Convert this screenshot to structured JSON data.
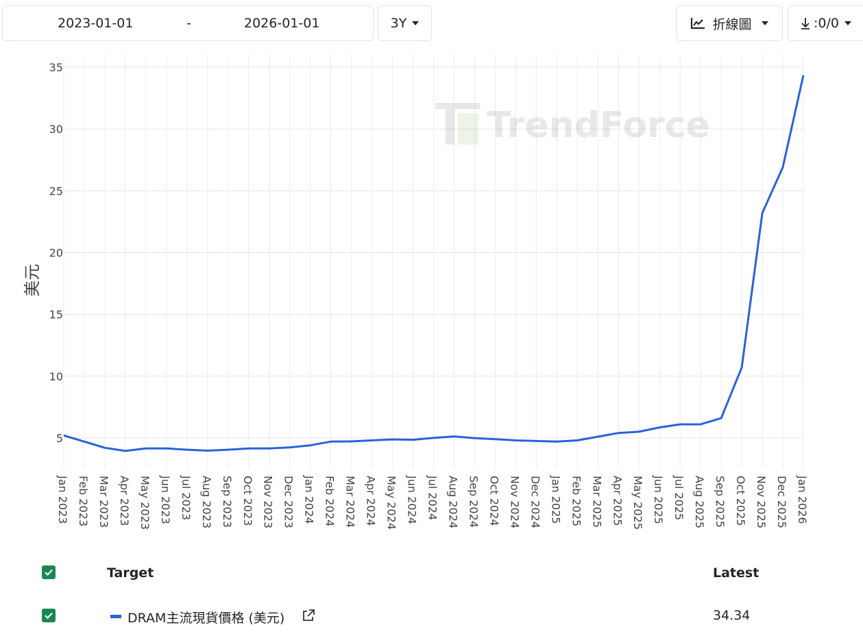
{
  "controls": {
    "start_date": "2023-01-01",
    "separator": "-",
    "end_date": "2026-01-01",
    "range": "3Y",
    "chart_type": "折線圖",
    "download": ":0/0"
  },
  "watermark": "TrendForce",
  "table": {
    "header_target": "Target",
    "header_latest": "Latest",
    "rows": [
      {
        "name": "DRAM主流現貨價格 (美元)",
        "latest": "34.34",
        "color": "#2962d9"
      }
    ]
  },
  "chart_data": {
    "type": "line",
    "title": "",
    "xlabel": "",
    "ylabel": "美元",
    "ylim": [
      2.5,
      36
    ],
    "yticks": [
      5,
      10,
      15,
      20,
      25,
      30,
      35
    ],
    "grid": true,
    "categories": [
      "Jan 2023",
      "Feb 2023",
      "Mar 2023",
      "Apr 2023",
      "May 2023",
      "Jun 2023",
      "Jul 2023",
      "Aug 2023",
      "Sep 2023",
      "Oct 2023",
      "Nov 2023",
      "Dec 2023",
      "Jan 2024",
      "Feb 2024",
      "Mar 2024",
      "Apr 2024",
      "May 2024",
      "Jun 2024",
      "Jul 2024",
      "Aug 2024",
      "Sep 2024",
      "Oct 2024",
      "Nov 2024",
      "Dec 2024",
      "Jan 2025",
      "Feb 2025",
      "Mar 2025",
      "Apr 2025",
      "May 2025",
      "Jun 2025",
      "Jul 2025",
      "Aug 2025",
      "Sep 2025",
      "Oct 2025",
      "Nov 2025",
      "Dec 2025",
      "Jan 2026"
    ],
    "series": [
      {
        "name": "DRAM主流現貨價格 (美元)",
        "color": "#2962d9",
        "values": [
          5.2,
          4.7,
          4.2,
          3.95,
          4.15,
          4.15,
          4.05,
          3.97,
          4.05,
          4.15,
          4.15,
          4.23,
          4.4,
          4.7,
          4.72,
          4.8,
          4.88,
          4.85,
          5.0,
          5.12,
          4.98,
          4.9,
          4.8,
          4.75,
          4.7,
          4.8,
          5.1,
          5.4,
          5.5,
          5.85,
          6.1,
          6.1,
          6.6,
          10.7,
          23.2,
          26.9,
          34.34
        ]
      }
    ]
  }
}
